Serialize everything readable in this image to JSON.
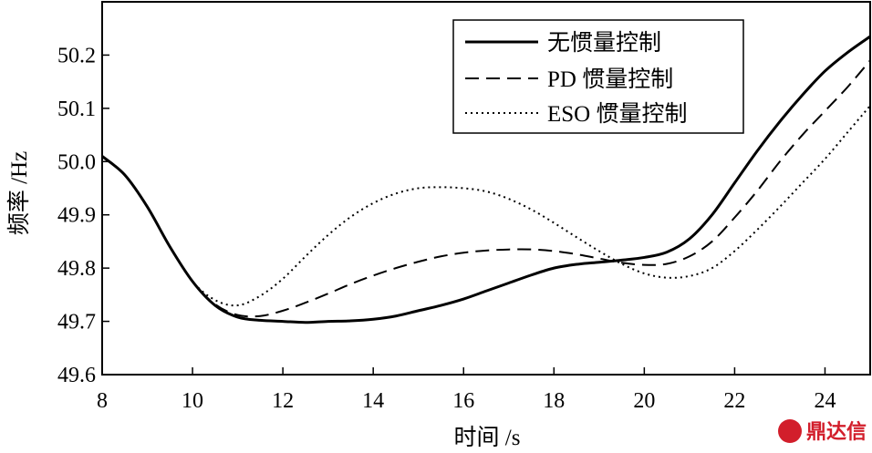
{
  "chart_data": {
    "type": "line",
    "title": "",
    "xlabel": "时间 /s",
    "ylabel": "频率 /Hz",
    "xlim": [
      8,
      25
    ],
    "ylim": [
      49.6,
      50.3
    ],
    "xticks": [
      8,
      10,
      12,
      14,
      16,
      18,
      20,
      22,
      24
    ],
    "xtick_labels": [
      "8",
      "10",
      "12",
      "14",
      "16",
      "18",
      "20",
      "22",
      "24"
    ],
    "yticks": [
      49.6,
      49.7,
      49.8,
      49.9,
      50.0,
      50.1,
      50.2
    ],
    "ytick_labels": [
      "49.6",
      "49.7",
      "49.8",
      "49.9",
      "50.0",
      "50.1",
      "50.2"
    ],
    "grid": false,
    "legend_position": "top-right",
    "series": [
      {
        "name": "无惯量控制",
        "style": "solid",
        "x": [
          8,
          8.5,
          9,
          9.5,
          10,
          10.5,
          11,
          11.5,
          12,
          12.5,
          13,
          13.5,
          14,
          14.5,
          15,
          15.5,
          16,
          16.5,
          17,
          17.5,
          18,
          18.5,
          19,
          19.5,
          20,
          20.5,
          21,
          21.5,
          22,
          22.5,
          23,
          23.5,
          24,
          24.5,
          25
        ],
        "values": [
          50.01,
          49.975,
          49.915,
          49.84,
          49.775,
          49.73,
          49.708,
          49.702,
          49.7,
          49.698,
          49.7,
          49.701,
          49.704,
          49.71,
          49.72,
          49.73,
          49.742,
          49.757,
          49.772,
          49.787,
          49.8,
          49.807,
          49.811,
          49.815,
          49.82,
          49.83,
          49.855,
          49.9,
          49.96,
          50.02,
          50.075,
          50.125,
          50.17,
          50.205,
          50.235
        ]
      },
      {
        "name": "PD 惯量控制",
        "style": "dashed",
        "x": [
          8,
          8.5,
          9,
          9.5,
          10,
          10.5,
          11,
          11.5,
          12,
          12.5,
          13,
          13.5,
          14,
          14.5,
          15,
          15.5,
          16,
          16.5,
          17,
          17.5,
          18,
          18.5,
          19,
          19.5,
          20,
          20.5,
          21,
          21.5,
          22,
          22.5,
          23,
          23.5,
          24,
          24.5,
          25
        ],
        "values": [
          50.01,
          49.975,
          49.915,
          49.84,
          49.775,
          49.732,
          49.712,
          49.71,
          49.72,
          49.735,
          49.752,
          49.77,
          49.786,
          49.8,
          49.812,
          49.822,
          49.829,
          49.833,
          49.835,
          49.835,
          49.832,
          49.826,
          49.818,
          49.81,
          49.806,
          49.808,
          49.822,
          49.85,
          49.895,
          49.945,
          50.0,
          50.05,
          50.095,
          50.14,
          50.19
        ]
      },
      {
        "name": "ESO 惯量控制",
        "style": "dotted",
        "x": [
          8,
          8.5,
          9,
          9.5,
          10,
          10.5,
          11,
          11.5,
          12,
          12.5,
          13,
          13.5,
          14,
          14.5,
          15,
          15.5,
          16,
          16.5,
          17,
          17.5,
          18,
          18.5,
          19,
          19.5,
          20,
          20.5,
          21,
          21.5,
          22,
          22.5,
          23,
          23.5,
          24,
          24.5,
          25
        ],
        "values": [
          50.01,
          49.975,
          49.915,
          49.84,
          49.775,
          49.74,
          49.73,
          49.748,
          49.78,
          49.822,
          49.862,
          49.896,
          49.922,
          49.94,
          49.95,
          49.952,
          49.95,
          49.944,
          49.93,
          49.91,
          49.885,
          49.858,
          49.832,
          49.808,
          49.79,
          49.782,
          49.785,
          49.8,
          49.832,
          49.872,
          49.915,
          49.96,
          50.005,
          50.055,
          50.105
        ]
      }
    ]
  },
  "watermark": {
    "text": "鼎达信",
    "color": "#d21e2b"
  }
}
